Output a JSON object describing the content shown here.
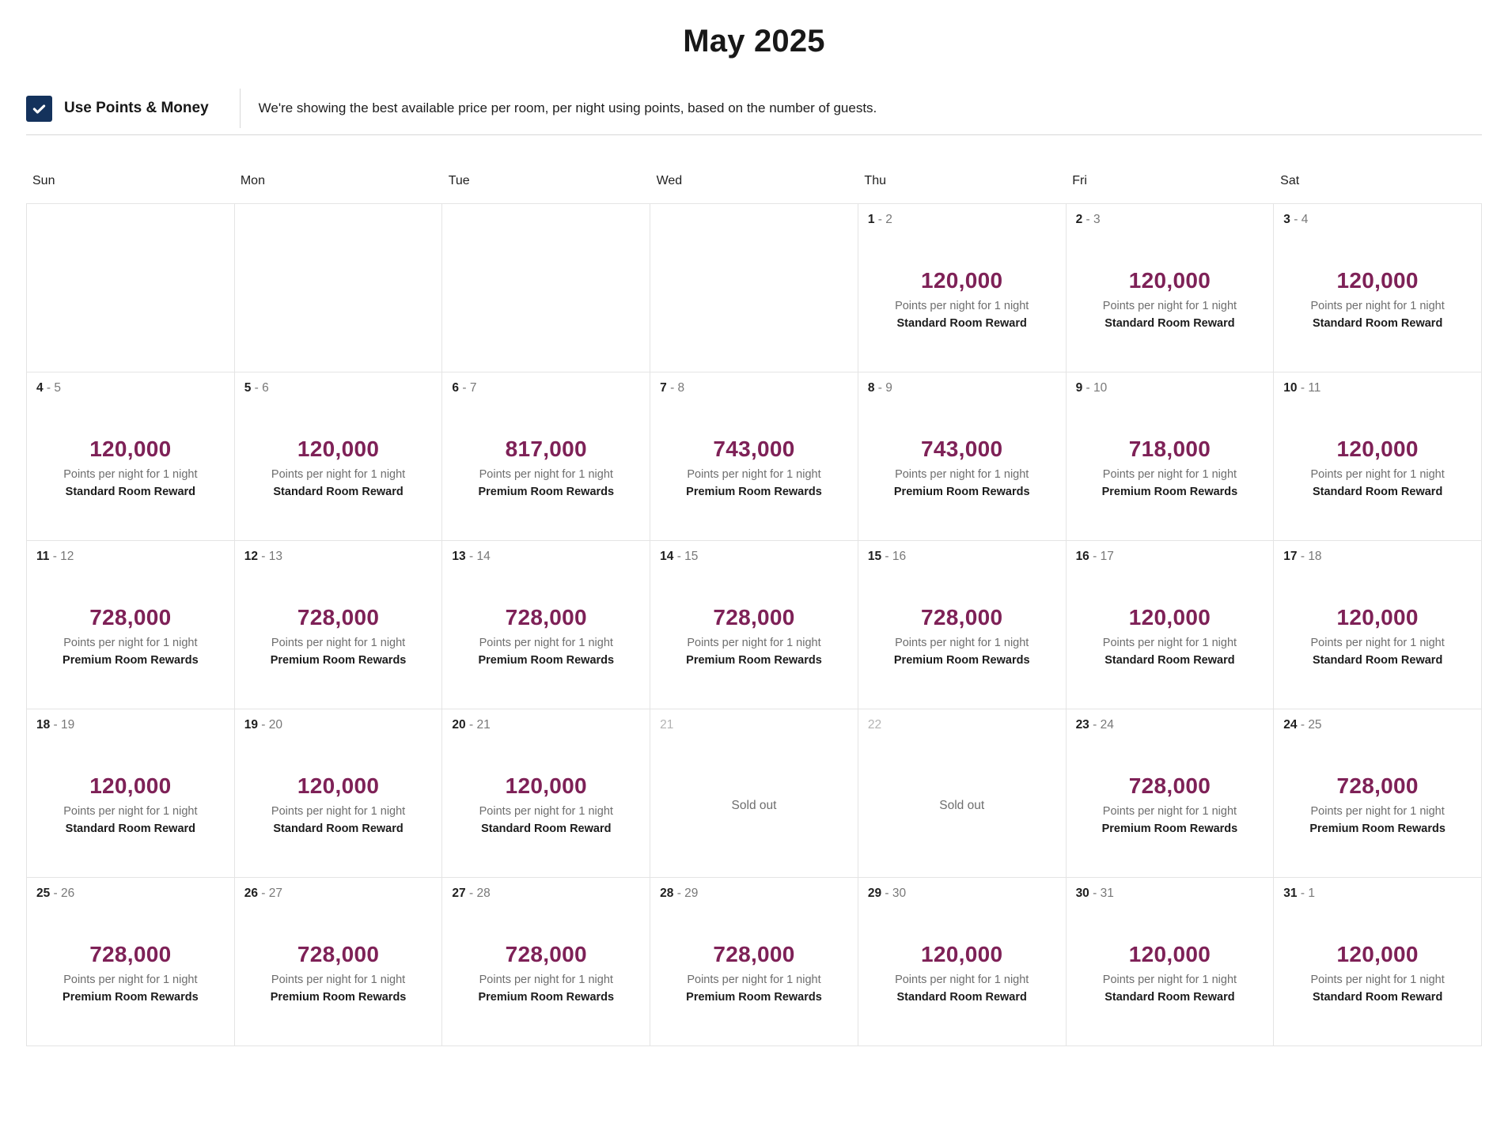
{
  "title": "May 2025",
  "toggle": {
    "label": "Use Points & Money",
    "checked": true,
    "description": "We're showing the best available price per room, per night using points, based on the number of guests."
  },
  "calendar": {
    "day_headers": [
      "Sun",
      "Mon",
      "Tue",
      "Wed",
      "Thu",
      "Fri",
      "Sat"
    ],
    "per_night_label": "Points per night for 1 night",
    "sold_out_label": "Sold out",
    "weeks": [
      [
        null,
        null,
        null,
        null,
        {
          "start": "1",
          "end": "2",
          "points": "120,000",
          "room": "Standard Room Reward"
        },
        {
          "start": "2",
          "end": "3",
          "points": "120,000",
          "room": "Standard Room Reward"
        },
        {
          "start": "3",
          "end": "4",
          "points": "120,000",
          "room": "Standard Room Reward"
        }
      ],
      [
        {
          "start": "4",
          "end": "5",
          "points": "120,000",
          "room": "Standard Room Reward"
        },
        {
          "start": "5",
          "end": "6",
          "points": "120,000",
          "room": "Standard Room Reward"
        },
        {
          "start": "6",
          "end": "7",
          "points": "817,000",
          "room": "Premium Room Rewards"
        },
        {
          "start": "7",
          "end": "8",
          "points": "743,000",
          "room": "Premium Room Rewards"
        },
        {
          "start": "8",
          "end": "9",
          "points": "743,000",
          "room": "Premium Room Rewards"
        },
        {
          "start": "9",
          "end": "10",
          "points": "718,000",
          "room": "Premium Room Rewards"
        },
        {
          "start": "10",
          "end": "11",
          "points": "120,000",
          "room": "Standard Room Reward"
        }
      ],
      [
        {
          "start": "11",
          "end": "12",
          "points": "728,000",
          "room": "Premium Room Rewards"
        },
        {
          "start": "12",
          "end": "13",
          "points": "728,000",
          "room": "Premium Room Rewards"
        },
        {
          "start": "13",
          "end": "14",
          "points": "728,000",
          "room": "Premium Room Rewards"
        },
        {
          "start": "14",
          "end": "15",
          "points": "728,000",
          "room": "Premium Room Rewards"
        },
        {
          "start": "15",
          "end": "16",
          "points": "728,000",
          "room": "Premium Room Rewards"
        },
        {
          "start": "16",
          "end": "17",
          "points": "120,000",
          "room": "Standard Room Reward"
        },
        {
          "start": "17",
          "end": "18",
          "points": "120,000",
          "room": "Standard Room Reward"
        }
      ],
      [
        {
          "start": "18",
          "end": "19",
          "points": "120,000",
          "room": "Standard Room Reward"
        },
        {
          "start": "19",
          "end": "20",
          "points": "120,000",
          "room": "Standard Room Reward"
        },
        {
          "start": "20",
          "end": "21",
          "points": "120,000",
          "room": "Standard Room Reward"
        },
        {
          "start": "21",
          "sold_out": true
        },
        {
          "start": "22",
          "sold_out": true
        },
        {
          "start": "23",
          "end": "24",
          "points": "728,000",
          "room": "Premium Room Rewards"
        },
        {
          "start": "24",
          "end": "25",
          "points": "728,000",
          "room": "Premium Room Rewards"
        }
      ],
      [
        {
          "start": "25",
          "end": "26",
          "points": "728,000",
          "room": "Premium Room Rewards"
        },
        {
          "start": "26",
          "end": "27",
          "points": "728,000",
          "room": "Premium Room Rewards"
        },
        {
          "start": "27",
          "end": "28",
          "points": "728,000",
          "room": "Premium Room Rewards"
        },
        {
          "start": "28",
          "end": "29",
          "points": "728,000",
          "room": "Premium Room Rewards"
        },
        {
          "start": "29",
          "end": "30",
          "points": "120,000",
          "room": "Standard Room Reward"
        },
        {
          "start": "30",
          "end": "31",
          "points": "120,000",
          "room": "Standard Room Reward"
        },
        {
          "start": "31",
          "end": "1",
          "points": "120,000",
          "room": "Standard Room Reward"
        }
      ]
    ]
  },
  "colors": {
    "points_value": "#7e2157",
    "checkbox": "#14325c",
    "text_dark": "#1f1f1f",
    "text_gray": "#6e6e6e",
    "grid_border": "#e4e4e4"
  }
}
